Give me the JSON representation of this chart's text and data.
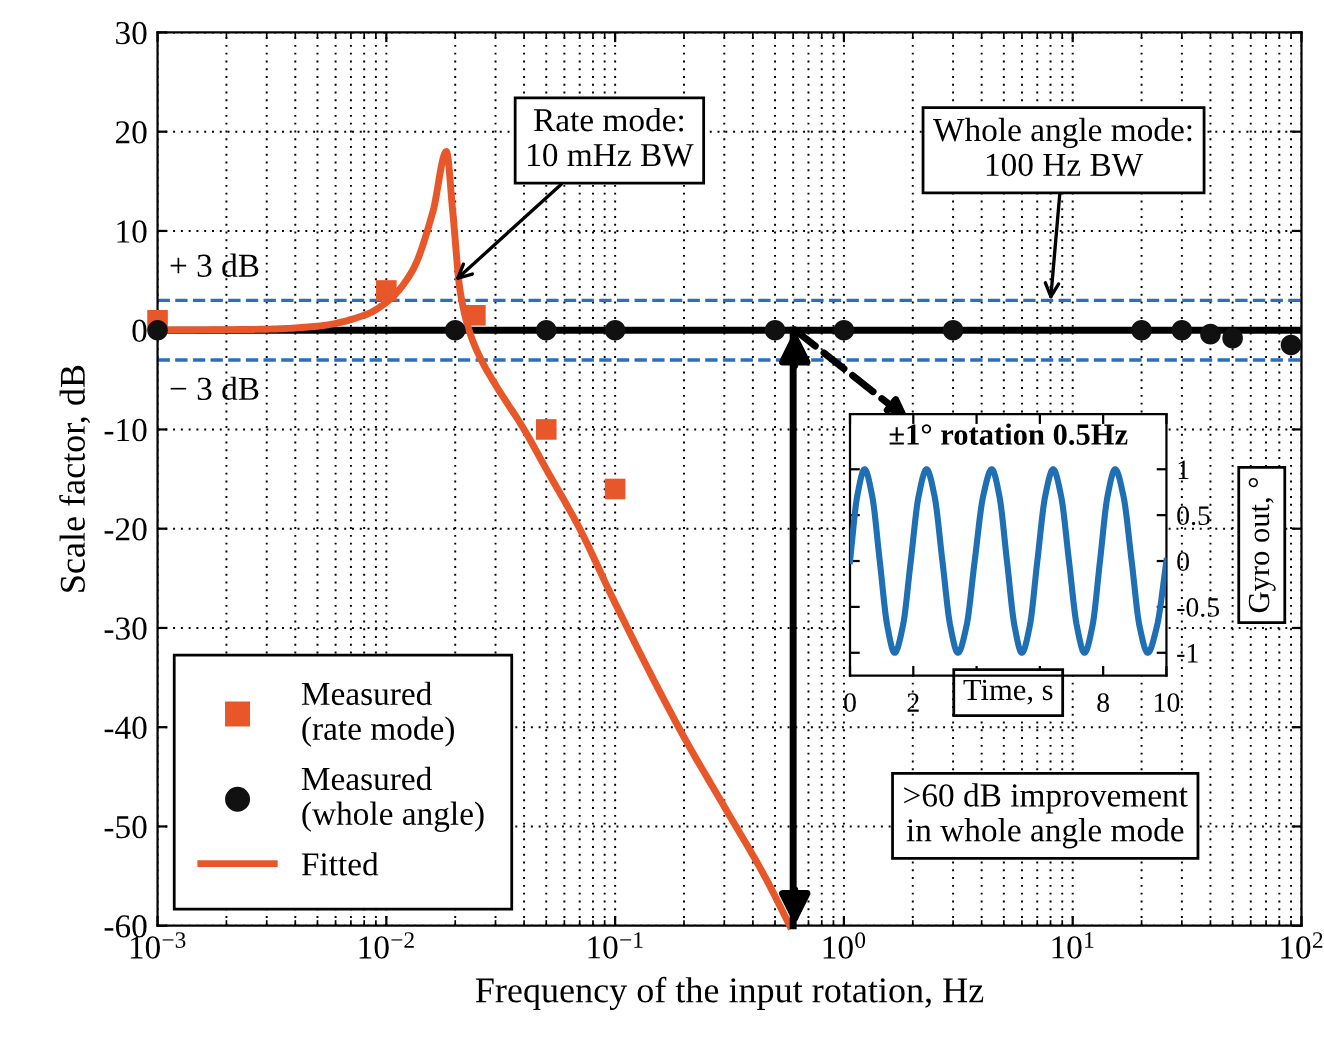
{
  "chart_data": [
    {
      "type": "line",
      "xlabel": "Frequency of the input rotation, Hz",
      "ylabel": "Scale factor, dB",
      "log": "x",
      "xlim": [
        0.001,
        100
      ],
      "ylim": [
        -60,
        30
      ],
      "xticks": [
        {
          "value": 0.001,
          "label": "10$^{−3}$"
        },
        {
          "value": 0.01,
          "label": "10$^{−2}$"
        },
        {
          "value": 0.1,
          "label": "10$^{−1}$"
        },
        {
          "value": 1,
          "label": "10$^{0}$"
        },
        {
          "value": 10,
          "label": "10$^{1}$"
        },
        {
          "value": 100,
          "label": "10$^{2}$"
        }
      ],
      "yticks": [
        -60,
        -50,
        -40,
        -30,
        -20,
        -10,
        0,
        10,
        20,
        30
      ],
      "grid": true,
      "legend": "bottom left",
      "series": [
        {
          "name": "Measured\n(rate mode)",
          "type": "scatter",
          "marker": "square",
          "color": "#e8572a",
          "x": [
            0.001,
            0.01,
            0.0245,
            0.05,
            0.1
          ],
          "values": [
            1,
            4,
            1.5,
            -10,
            -16
          ]
        },
        {
          "name": "Measured\n(whole angle)",
          "type": "scatter",
          "marker": "circle",
          "color": "#111111",
          "x": [
            0.001,
            0.02,
            0.05,
            0.1,
            0.5,
            1,
            3,
            20,
            30,
            40,
            50,
            90
          ],
          "values": [
            0,
            0,
            0,
            0,
            0,
            0,
            0,
            0,
            0,
            -0.4,
            -0.8,
            -1.5
          ]
        },
        {
          "name": "Fitted",
          "type": "line",
          "color": "#e8572a",
          "x": [
            0.001,
            0.003,
            0.005,
            0.008,
            0.01,
            0.013,
            0.016,
            0.0183,
            0.0195,
            0.021,
            0.023,
            0.026,
            0.03,
            0.04,
            0.05,
            0.07,
            0.1,
            0.2,
            0.3,
            0.45,
            0.58
          ],
          "values": [
            0,
            0.1,
            0.4,
            1.5,
            2.8,
            6,
            12,
            18,
            12,
            4,
            0,
            -3,
            -5.5,
            -10,
            -14,
            -20,
            -27.5,
            -41,
            -48,
            -55,
            -60
          ]
        },
        {
          "type": "line",
          "color": "#000000",
          "x": [
            0.6,
            0.6
          ],
          "values": [
            0,
            -60
          ]
        }
      ],
      "ref_lines": [
        {
          "axis": "y",
          "value": 0,
          "color": "#000000",
          "line_style": "solid"
        },
        {
          "axis": "y",
          "value": 3,
          "label": "+ 3 dB",
          "color": "#2a6fc0",
          "line_style": "dashed"
        },
        {
          "axis": "y",
          "value": -3,
          "label": "− 3 dB",
          "color": "#2a6fc0",
          "line_style": "dashed"
        }
      ],
      "annotations": [
        {
          "text": "Rate mode:\n10 mHz BW",
          "x": 0.02,
          "y": 5
        },
        {
          "text": "Whole angle mode:\n100 Hz BW",
          "x": 8,
          "y": 3
        },
        ">60 dB improvement\nin whole angle mode"
      ]
    },
    {
      "type": "line",
      "title": "±1° rotation 0.5Hz",
      "xlabel": "Time, s",
      "ylabel": "Gyro out, °",
      "xlim": [
        0,
        10
      ],
      "ylim": [
        -1.25,
        1.6
      ],
      "xticks": [
        0,
        2,
        {
          "value": 4,
          "label": null
        },
        {
          "value": 6,
          "label": null
        },
        8,
        10
      ],
      "yticks": [
        -1,
        -0.5,
        0,
        0.5,
        1
      ],
      "series": [
        {
          "color": "#1f6fb4",
          "x": [
            0,
            0.23,
            0.46,
            0.7,
            0.94,
            1.18,
            1.41,
            1.67,
            1.92,
            2.17,
            2.42,
            2.67,
            2.92,
            3.17,
            3.41,
            3.68,
            3.94,
            4.21,
            4.48,
            4.72,
            4.96,
            5.2,
            5.43,
            5.68,
            5.92,
            6.17,
            6.42,
            6.67,
            6.92,
            7.17,
            7.41,
            7.66,
            7.9,
            8.14,
            8.38,
            8.64,
            8.9,
            9.15,
            9.41,
            9.7,
            10
          ],
          "values": [
            0,
            0.71,
            1,
            0.71,
            0,
            -0.71,
            -1,
            -0.71,
            0,
            0.71,
            1,
            0.71,
            0,
            -0.71,
            -1,
            -0.71,
            0,
            0.71,
            1,
            0.71,
            0,
            -0.71,
            -1,
            -0.71,
            0,
            0.71,
            1,
            0.71,
            0,
            -0.71,
            -1,
            -0.71,
            0,
            0.71,
            1,
            0.71,
            0,
            -0.71,
            -1,
            -0.71,
            0
          ]
        }
      ]
    }
  ]
}
